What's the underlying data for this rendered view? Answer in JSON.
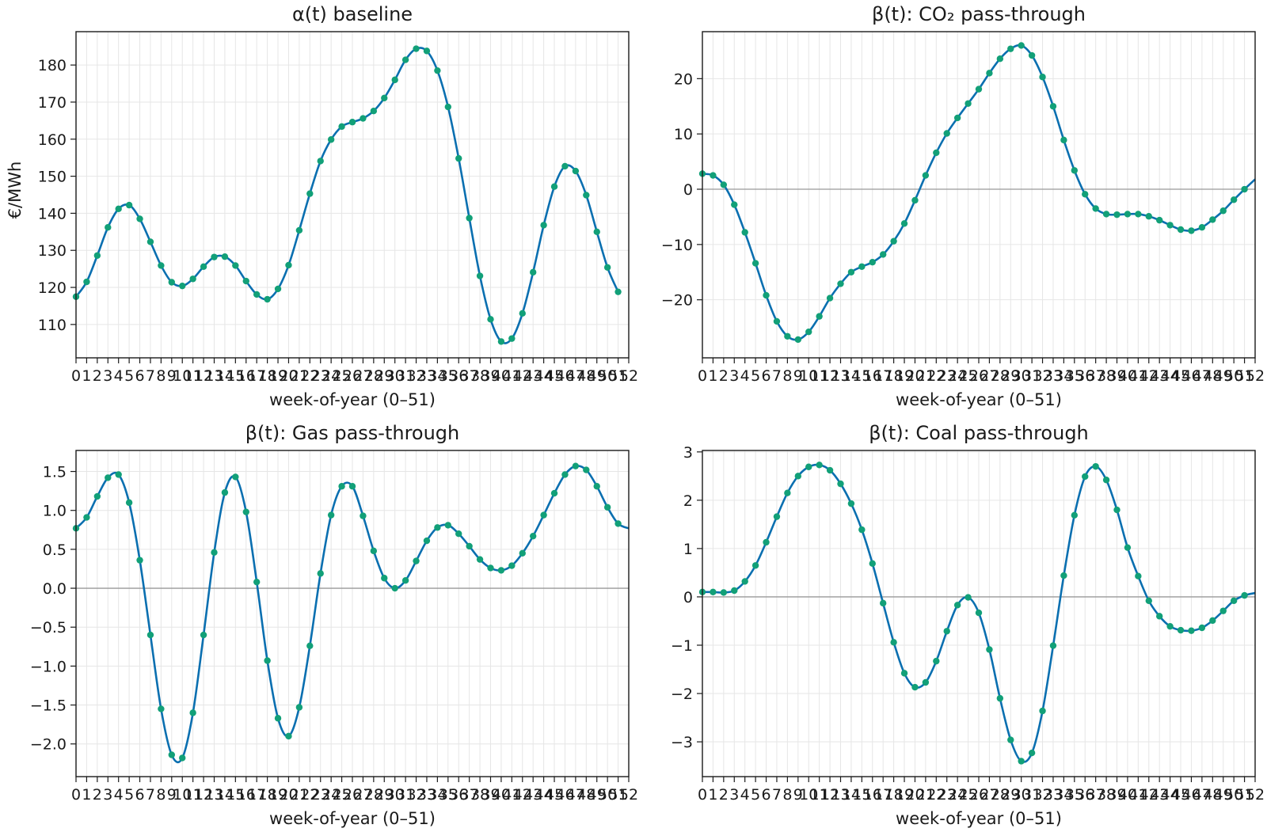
{
  "colors": {
    "line": "#0a6fb0",
    "marker": "#12a078",
    "zero_line": "#999999",
    "grid": "#e6e6e6"
  },
  "chart_data": [
    {
      "type": "line",
      "title": "α(t) baseline",
      "xlabel": "week-of-year (0–51)",
      "ylabel": "€/MWh",
      "xlim": [
        0,
        52
      ],
      "ylim": [
        101,
        189
      ],
      "yticks": [
        110,
        120,
        130,
        140,
        150,
        160,
        170,
        180
      ],
      "ytick_labels": [
        "110",
        "120",
        "130",
        "140",
        "150",
        "160",
        "170",
        "180"
      ],
      "grid": true,
      "zero_line": false,
      "series": [
        {
          "values": [
            117.5,
            121.5,
            128.6,
            136.2,
            141.2,
            142.2,
            138.5,
            132.3,
            125.9,
            121.4,
            120.4,
            122.3,
            125.6,
            128.2,
            128.3,
            125.9,
            121.7,
            118.1,
            116.8,
            119.6,
            126.0,
            135.4,
            145.3,
            154.1,
            159.9,
            163.4,
            164.6,
            165.6,
            167.6,
            171.1,
            176.0,
            181.4,
            184.4,
            183.8,
            178.5,
            168.7,
            154.8,
            138.7,
            123.1,
            111.4,
            105.4,
            106.2,
            113.0,
            124.1,
            136.8,
            147.2,
            152.7,
            151.4,
            144.9,
            135.0,
            125.4,
            118.8
          ]
        }
      ]
    },
    {
      "type": "line",
      "title": "β(t): CO₂ pass-through",
      "xlabel": "week-of-year (0–51)",
      "ylabel": "",
      "xlim": [
        0,
        52
      ],
      "ylim": [
        -30.5,
        28.5
      ],
      "yticks": [
        -20,
        -10,
        0,
        10,
        20
      ],
      "ytick_labels": [
        "−20",
        "−10",
        "0",
        "10",
        "20"
      ],
      "grid": true,
      "zero_line": true,
      "series": [
        {
          "values": [
            2.8,
            2.5,
            0.8,
            -2.8,
            -7.8,
            -13.4,
            -19.2,
            -23.9,
            -26.6,
            -27.2,
            -25.8,
            -23.0,
            -19.7,
            -17.1,
            -15.0,
            -14.0,
            -13.2,
            -11.8,
            -9.4,
            -6.2,
            -2.0,
            2.5,
            6.6,
            10.1,
            12.9,
            15.5,
            18.1,
            21.0,
            23.6,
            25.4,
            26.0,
            24.2,
            20.3,
            15.0,
            8.9,
            3.4,
            -0.9,
            -3.5,
            -4.5,
            -4.6,
            -4.5,
            -4.5,
            -4.9,
            -5.6,
            -6.5,
            -7.3,
            -7.5,
            -6.9,
            -5.5,
            -3.9,
            -1.9,
            0.0,
            1.8
          ]
        }
      ]
    },
    {
      "type": "line",
      "title": "β(t): Gas pass-through",
      "xlabel": "week-of-year (0–51)",
      "ylabel": "",
      "xlim": [
        0,
        52
      ],
      "ylim": [
        -2.42,
        1.77
      ],
      "yticks": [
        -2.0,
        -1.5,
        -1.0,
        -0.5,
        0.0,
        0.5,
        1.0,
        1.5
      ],
      "ytick_labels": [
        "−2.0",
        "−1.5",
        "−1.0",
        "−0.5",
        "0.0",
        "0.5",
        "1.0",
        "1.5"
      ],
      "grid": true,
      "zero_line": true,
      "series": [
        {
          "values": [
            0.77,
            0.91,
            1.18,
            1.42,
            1.46,
            1.1,
            0.36,
            -0.6,
            -1.55,
            -2.14,
            -2.18,
            -1.6,
            -0.6,
            0.46,
            1.23,
            1.43,
            0.98,
            0.08,
            -0.93,
            -1.67,
            -1.9,
            -1.53,
            -0.74,
            0.19,
            0.94,
            1.31,
            1.31,
            0.93,
            0.48,
            0.13,
            0.0,
            0.1,
            0.35,
            0.61,
            0.78,
            0.81,
            0.7,
            0.54,
            0.37,
            0.26,
            0.23,
            0.29,
            0.45,
            0.67,
            0.94,
            1.22,
            1.46,
            1.57,
            1.52,
            1.31,
            1.04,
            0.83,
            0.77
          ]
        }
      ]
    },
    {
      "type": "line",
      "title": "β(t): Coal pass-through",
      "xlabel": "week-of-year (0–51)",
      "ylabel": "",
      "xlim": [
        0,
        52
      ],
      "ylim": [
        -3.72,
        3.03
      ],
      "yticks": [
        -3,
        -2,
        -1,
        0,
        1,
        2,
        3
      ],
      "ytick_labels": [
        "−3",
        "−2",
        "−1",
        "0",
        "1",
        "2",
        "3"
      ],
      "grid": true,
      "zero_line": true,
      "series": [
        {
          "values": [
            0.1,
            0.1,
            0.09,
            0.13,
            0.32,
            0.65,
            1.13,
            1.66,
            2.15,
            2.5,
            2.69,
            2.73,
            2.62,
            2.34,
            1.93,
            1.39,
            0.69,
            -0.13,
            -0.94,
            -1.58,
            -1.87,
            -1.77,
            -1.33,
            -0.71,
            -0.17,
            -0.01,
            -0.33,
            -1.09,
            -2.1,
            -2.96,
            -3.4,
            -3.23,
            -2.36,
            -1.01,
            0.44,
            1.69,
            2.49,
            2.7,
            2.42,
            1.8,
            1.02,
            0.43,
            -0.08,
            -0.4,
            -0.61,
            -0.69,
            -0.7,
            -0.64,
            -0.49,
            -0.29,
            -0.08,
            0.03,
            0.08
          ]
        }
      ]
    }
  ]
}
